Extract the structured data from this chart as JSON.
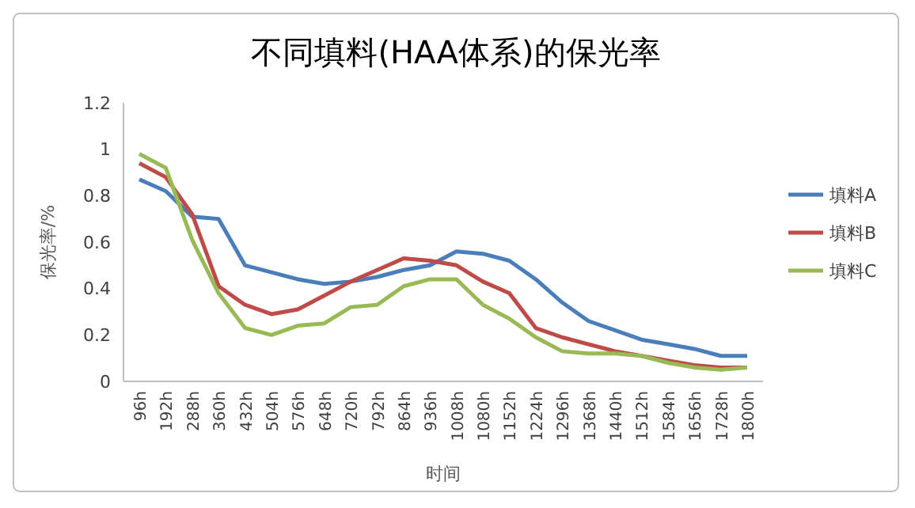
{
  "chart_data": {
    "type": "line",
    "title": "不同填料(HAA体系)的保光率",
    "xlabel": "时间",
    "ylabel": "保光率/%",
    "categories": [
      "96h",
      "192h",
      "288h",
      "360h",
      "432h",
      "504h",
      "576h",
      "648h",
      "720h",
      "792h",
      "864h",
      "936h",
      "1008h",
      "1080h",
      "1152h",
      "1224h",
      "1296h",
      "1368h",
      "1440h",
      "1512h",
      "1584h",
      "1656h",
      "1728h",
      "1800h"
    ],
    "series": [
      {
        "name": "填料A",
        "color": "#4a7ebb",
        "values": [
          0.87,
          0.82,
          0.71,
          0.7,
          0.5,
          0.47,
          0.44,
          0.42,
          0.43,
          0.45,
          0.48,
          0.5,
          0.56,
          0.55,
          0.52,
          0.44,
          0.34,
          0.26,
          0.22,
          0.18,
          0.16,
          0.14,
          0.11,
          0.11
        ]
      },
      {
        "name": "填料B",
        "color": "#be4b48",
        "values": [
          0.94,
          0.88,
          0.72,
          0.41,
          0.33,
          0.29,
          0.31,
          0.37,
          0.43,
          0.48,
          0.53,
          0.52,
          0.5,
          0.43,
          0.38,
          0.23,
          0.19,
          0.16,
          0.13,
          0.11,
          0.09,
          0.07,
          0.06,
          0.06
        ]
      },
      {
        "name": "填料C",
        "color": "#98b954",
        "values": [
          0.98,
          0.92,
          0.61,
          0.38,
          0.23,
          0.2,
          0.24,
          0.25,
          0.32,
          0.33,
          0.41,
          0.44,
          0.44,
          0.33,
          0.27,
          0.19,
          0.13,
          0.12,
          0.12,
          0.11,
          0.08,
          0.06,
          0.05,
          0.06
        ]
      }
    ],
    "ylim": [
      0,
      1.2
    ],
    "yticks": [
      0,
      0.2,
      0.4,
      0.6,
      0.8,
      1,
      1.2
    ],
    "grid": false,
    "legend": "right",
    "marker": "none",
    "line_style": "solid"
  }
}
